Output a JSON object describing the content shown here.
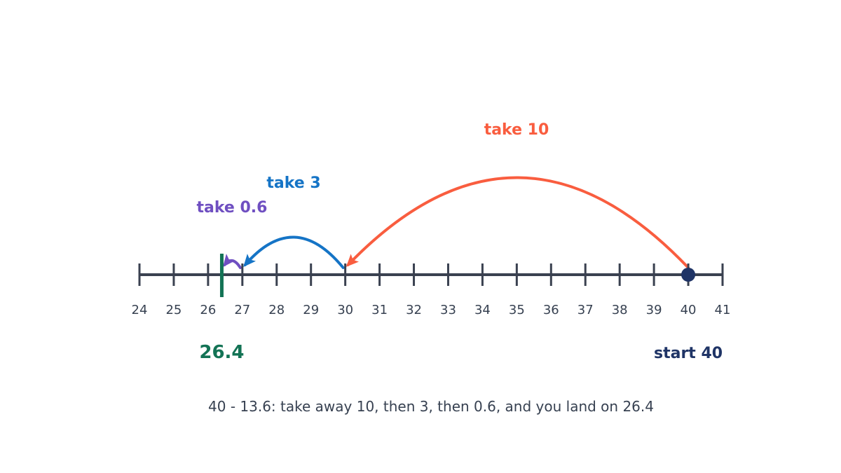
{
  "number_line": {
    "min": 24,
    "max": 41,
    "ticks": [
      24,
      25,
      26,
      27,
      28,
      29,
      30,
      31,
      32,
      33,
      34,
      35,
      36,
      37,
      38,
      39,
      40,
      41
    ],
    "axis_color": "#3a4150"
  },
  "start": {
    "value": 40,
    "label": "start 40",
    "color": "#1f3466"
  },
  "result": {
    "value": 26.4,
    "label": "26.4",
    "color": "#137355"
  },
  "hops": [
    {
      "from": 40,
      "to": 30,
      "label": "take 10",
      "color": "#f95d3f"
    },
    {
      "from": 30,
      "to": 27,
      "label": "take 3",
      "color": "#1574c6"
    },
    {
      "from": 27,
      "to": 26.4,
      "label": "take 0.6",
      "color": "#6f4fc1"
    }
  ],
  "caption": "40 - 13.6: take away 10, then 3, then 0.6, and you land on 26.4"
}
